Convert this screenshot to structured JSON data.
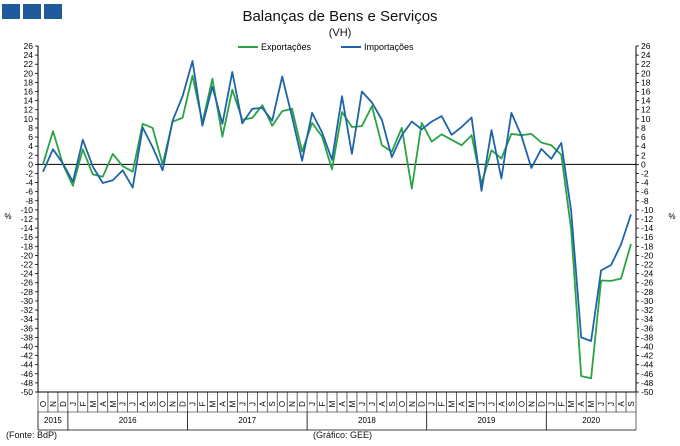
{
  "title": "Balanças de Bens e Serviços",
  "subtitle": "(VH)",
  "footer_left": "(Fonte: BdP)",
  "footer_center": "(Gráfico: GEE)",
  "logo_icon": "gee-logo-blocks",
  "chart_data": {
    "type": "line",
    "ylabel_left": "%",
    "ylabel_right": "%",
    "ylim": [
      -50,
      26
    ],
    "ytick_step": 2,
    "grid": false,
    "legend_position": "top-center",
    "x_month_labels": [
      "O",
      "N",
      "D",
      "J",
      "F",
      "M",
      "A",
      "M",
      "J",
      "J",
      "A",
      "S",
      "O",
      "N",
      "D",
      "J",
      "F",
      "M",
      "A",
      "M",
      "J",
      "J",
      "A",
      "S",
      "O",
      "N",
      "D",
      "J",
      "F",
      "M",
      "A",
      "M",
      "J",
      "J",
      "A",
      "S",
      "O",
      "N",
      "D",
      "J",
      "F",
      "M",
      "A",
      "M",
      "J",
      "J",
      "A",
      "S",
      "O",
      "N",
      "D",
      "J",
      "F",
      "M",
      "A",
      "M",
      "J",
      "J",
      "A",
      "S"
    ],
    "x_year_groups": [
      {
        "label": "2015",
        "start": 0,
        "count": 3
      },
      {
        "label": "2016",
        "start": 3,
        "count": 12
      },
      {
        "label": "2017",
        "start": 15,
        "count": 12
      },
      {
        "label": "2018",
        "start": 27,
        "count": 12
      },
      {
        "label": "2019",
        "start": 39,
        "count": 12
      },
      {
        "label": "2020",
        "start": 51,
        "count": 9
      }
    ],
    "series": [
      {
        "name": "Exportações",
        "color": "#2aa344",
        "values": [
          0.0,
          7.3,
          0.0,
          -4.7,
          3.3,
          -2.2,
          -2.7,
          2.3,
          -0.4,
          -1.6,
          8.9,
          8.0,
          0.0,
          9.4,
          10.2,
          19.5,
          9.2,
          18.8,
          6.1,
          16.4,
          9.8,
          10.2,
          13.0,
          8.5,
          11.7,
          12.2,
          2.8,
          9.1,
          6.1,
          -1.1,
          11.5,
          8.2,
          8.4,
          12.8,
          4.2,
          2.8,
          8.0,
          -5.3,
          9.1,
          5.0,
          6.6,
          5.4,
          4.2,
          6.4,
          -4.3,
          3.1,
          1.3,
          6.7,
          6.4,
          6.7,
          4.8,
          4.2,
          2.1,
          -14.4,
          -46.5,
          -47.0,
          -25.5,
          -25.6,
          -25.1,
          -17.5
        ]
      },
      {
        "name": "Importações",
        "color": "#1f64a8",
        "values": [
          -1.6,
          3.3,
          0.2,
          -3.8,
          5.4,
          -0.5,
          -4.1,
          -3.5,
          -1.3,
          -5.1,
          8.1,
          3.8,
          -1.3,
          9.6,
          14.9,
          22.7,
          8.5,
          17.1,
          8.9,
          20.3,
          9.0,
          12.2,
          12.4,
          9.6,
          19.3,
          10.4,
          0.8,
          11.3,
          7.0,
          1.0,
          15.0,
          2.3,
          16.0,
          13.6,
          9.8,
          1.6,
          6.4,
          9.4,
          7.7,
          9.4,
          10.6,
          6.5,
          8.2,
          10.3,
          -5.8,
          7.5,
          -3.1,
          11.3,
          6.3,
          -0.8,
          3.4,
          1.2,
          4.7,
          -10.3,
          -38.0,
          -38.8,
          -23.3,
          -22.1,
          -17.6,
          -11.0
        ]
      }
    ]
  }
}
